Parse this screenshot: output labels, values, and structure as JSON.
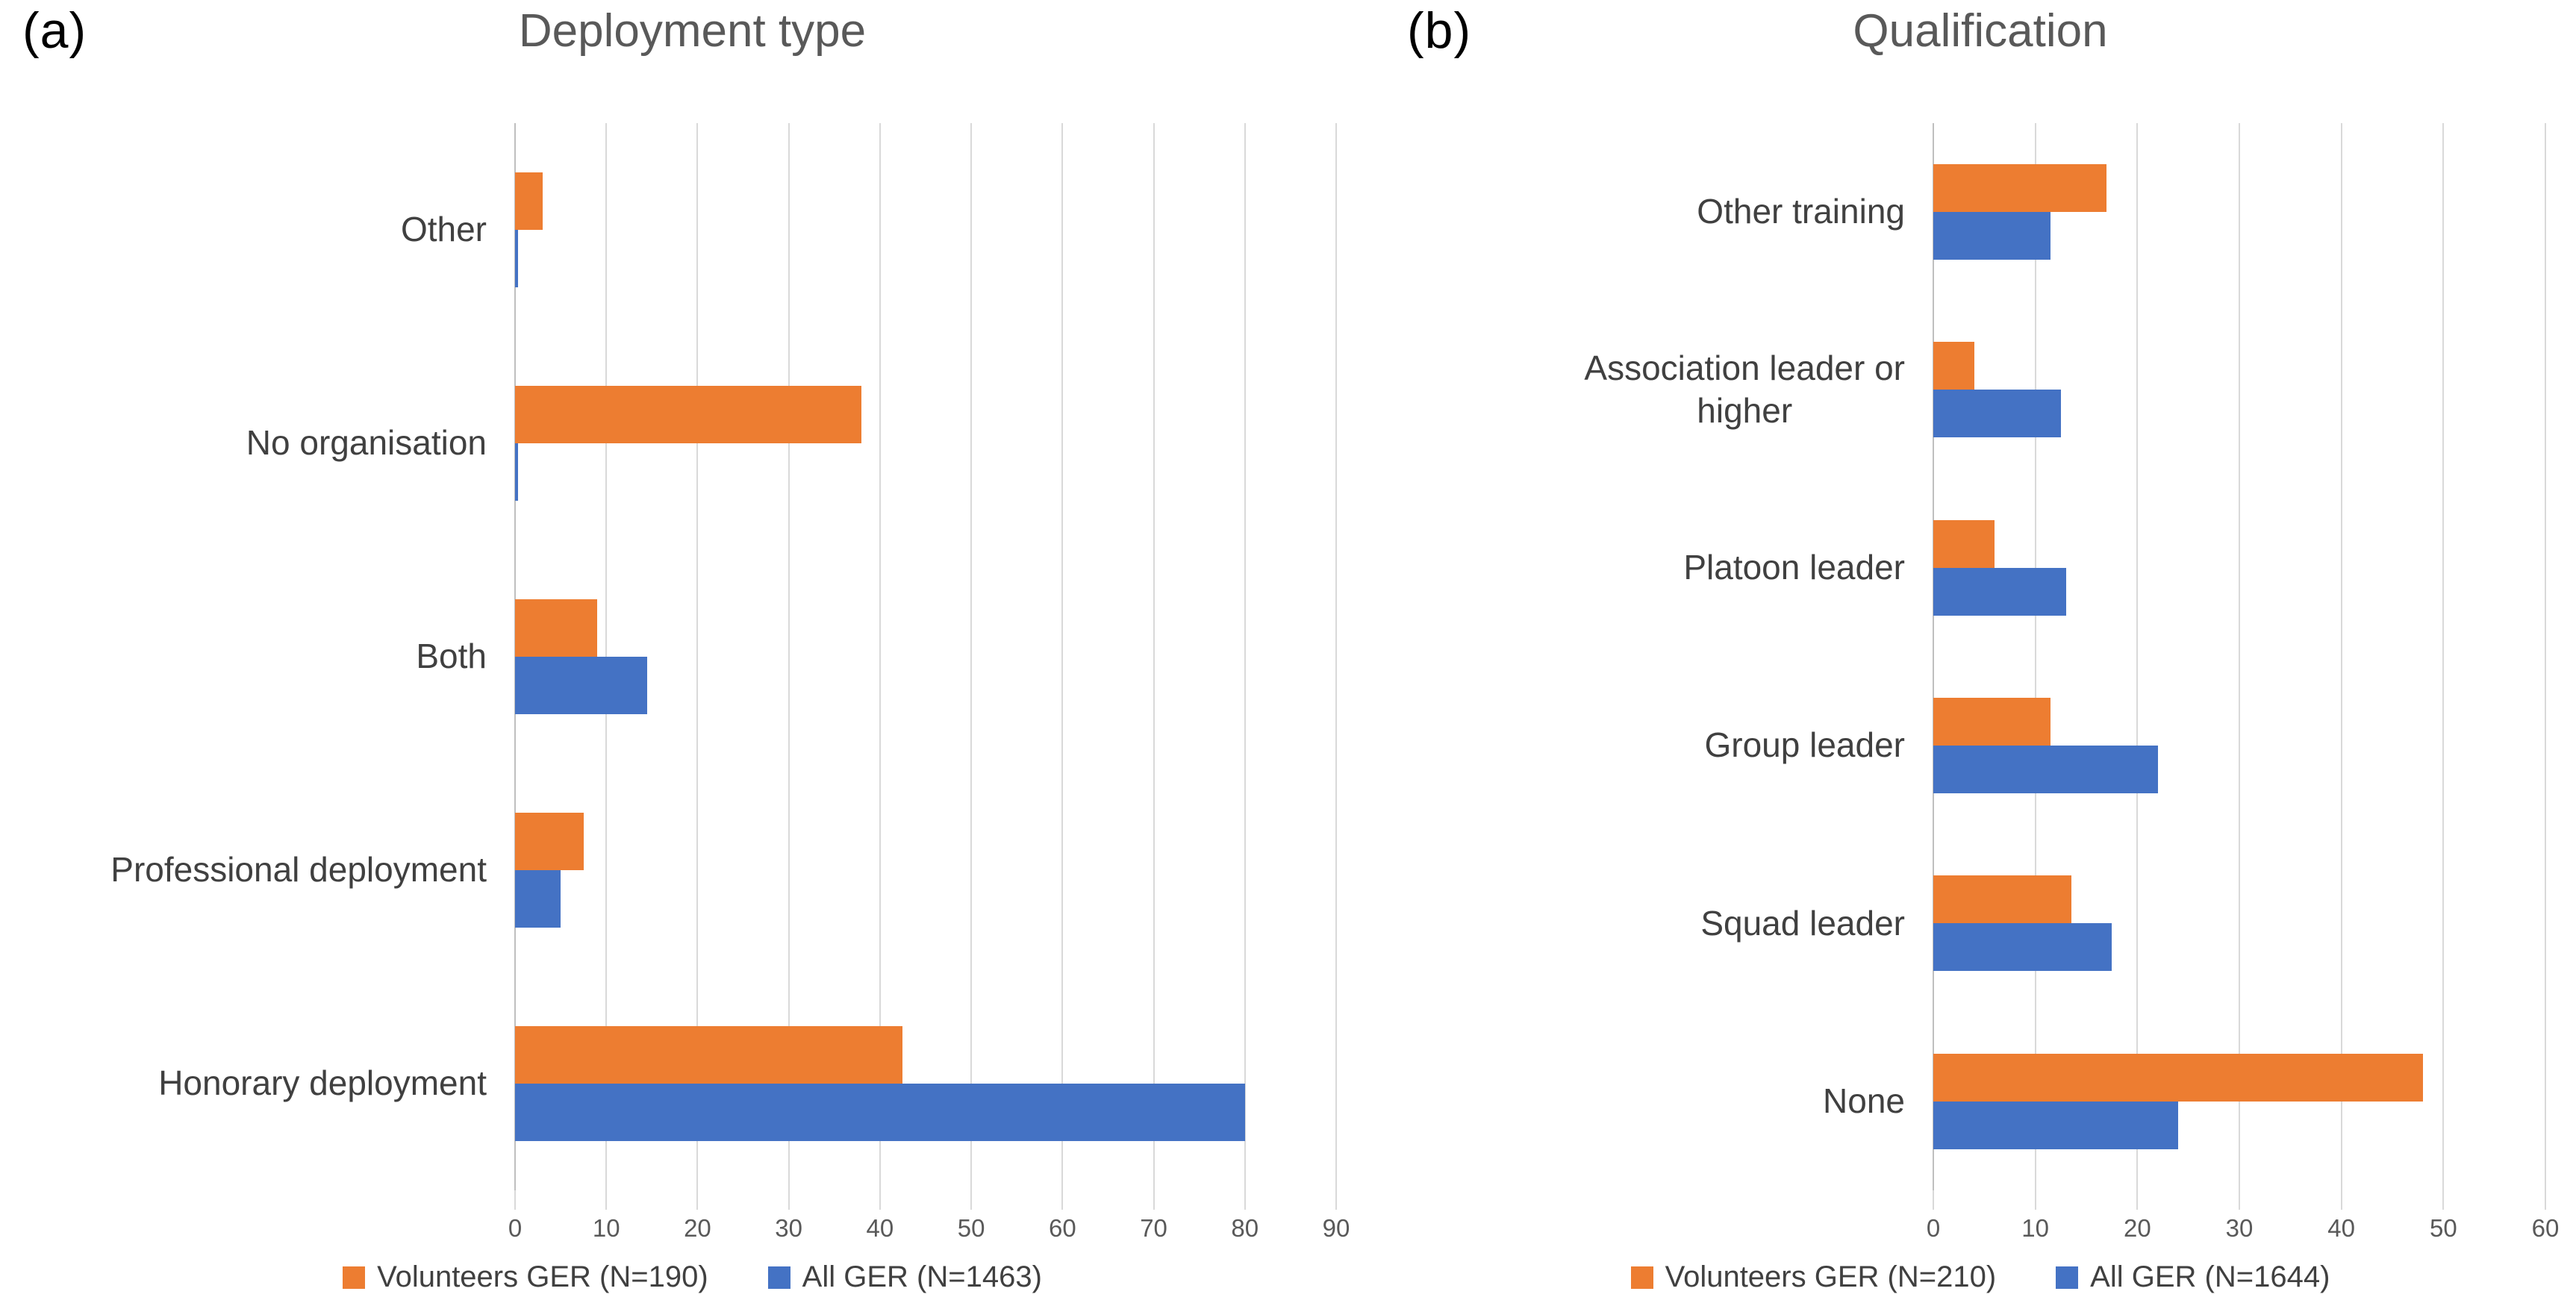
{
  "page": {
    "background": "#ffffff"
  },
  "colors": {
    "volunteers": "#ED7D31",
    "all": "#4472C4",
    "gridline": "#D9D9D9",
    "axis_line": "#BFBFBF",
    "title_text": "#595959",
    "category_text": "#404040",
    "tick_text": "#595959"
  },
  "chart_data": [
    {
      "type": "bar",
      "orientation": "horizontal",
      "panel_letter": "(a)",
      "title": "Deployment type",
      "categories": [
        "Other",
        "No organisation",
        "Both",
        "Professional deployment",
        "Honorary deployment"
      ],
      "series": [
        {
          "name": "Volunteers GER (N=190)",
          "color_key": "volunteers",
          "values": [
            3,
            38,
            9,
            7.5,
            42.5
          ]
        },
        {
          "name": "All GER (N=1463)",
          "color_key": "all",
          "values": [
            0.3,
            0.3,
            14.5,
            5,
            80
          ]
        }
      ],
      "xlim": [
        0,
        90
      ],
      "xticks": [
        0,
        10,
        20,
        30,
        40,
        50,
        60,
        70,
        80,
        90
      ],
      "grid": true,
      "legend_position": "bottom"
    },
    {
      "type": "bar",
      "orientation": "horizontal",
      "panel_letter": "(b)",
      "title": "Qualification",
      "categories": [
        "Other training",
        "Association leader or\nhigher",
        "Platoon leader",
        "Group leader",
        "Squad leader",
        "None"
      ],
      "series": [
        {
          "name": "Volunteers GER (N=210)",
          "color_key": "volunteers",
          "values": [
            17,
            4,
            6,
            11.5,
            13.5,
            48
          ]
        },
        {
          "name": "All GER (N=1644)",
          "color_key": "all",
          "values": [
            11.5,
            12.5,
            13,
            22,
            17.5,
            24
          ]
        }
      ],
      "xlim": [
        0,
        60
      ],
      "xticks": [
        0,
        10,
        20,
        30,
        40,
        50,
        60
      ],
      "grid": true,
      "legend_position": "bottom"
    }
  ]
}
